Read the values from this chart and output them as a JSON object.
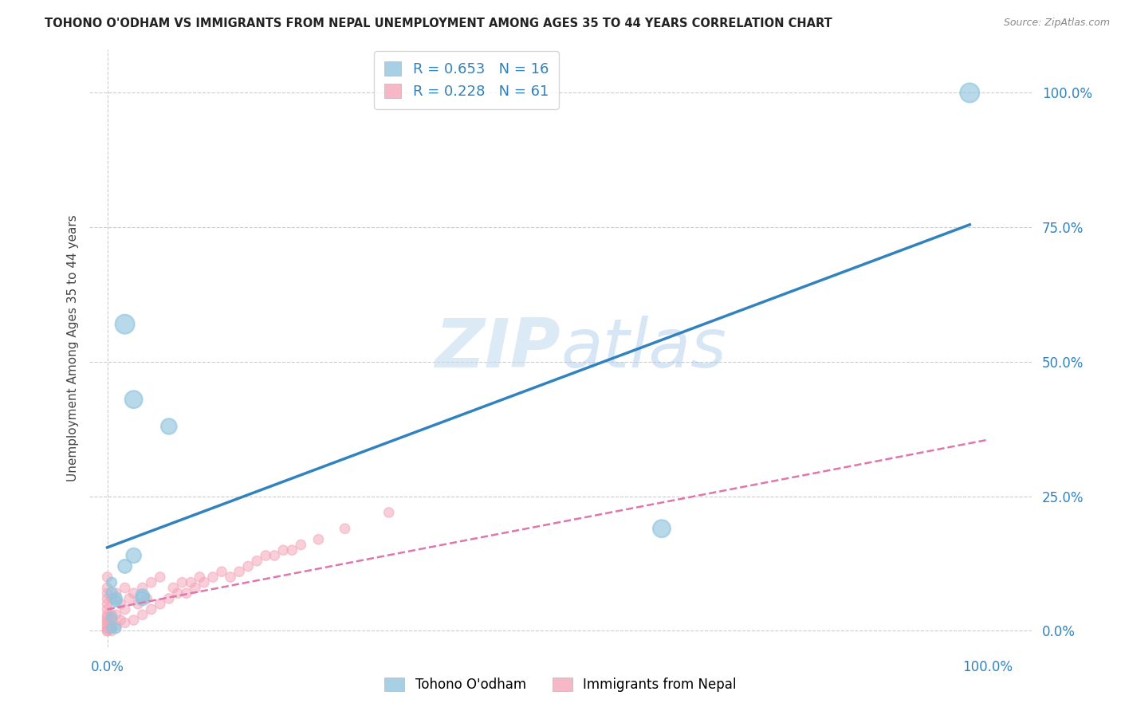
{
  "title": "TOHONO O'ODHAM VS IMMIGRANTS FROM NEPAL UNEMPLOYMENT AMONG AGES 35 TO 44 YEARS CORRELATION CHART",
  "source": "Source: ZipAtlas.com",
  "ylabel": "Unemployment Among Ages 35 to 44 years",
  "xlim": [
    -0.02,
    1.05
  ],
  "ylim": [
    -0.03,
    1.08
  ],
  "x_tick_positions": [
    0.0,
    1.0
  ],
  "x_tick_labels": [
    "0.0%",
    "100.0%"
  ],
  "y_tick_positions": [
    0.0,
    0.25,
    0.5,
    0.75,
    1.0
  ],
  "y_tick_labels_right": [
    "0.0%",
    "25.0%",
    "50.0%",
    "75.0%",
    "100.0%"
  ],
  "watermark_part1": "ZIP",
  "watermark_part2": "atlas",
  "blue_color": "#92c5de",
  "pink_color": "#f4a6b8",
  "blue_line_color": "#3182bd",
  "pink_line_color": "#de77ae",
  "legend_R_blue": "R = 0.653",
  "legend_N_blue": "N = 16",
  "legend_R_pink": "R = 0.228",
  "legend_N_pink": "N = 61",
  "blue_scatter_x": [
    0.02,
    0.03,
    0.07,
    0.03,
    0.01,
    0.02,
    0.005,
    0.01,
    0.04,
    0.01,
    0.005,
    0.63,
    0.98,
    0.005,
    0.005,
    0.04
  ],
  "blue_scatter_y": [
    0.57,
    0.43,
    0.38,
    0.14,
    0.06,
    0.12,
    0.07,
    0.055,
    0.06,
    0.005,
    0.005,
    0.19,
    1.0,
    0.09,
    0.025,
    0.065
  ],
  "blue_scatter_sizes": [
    300,
    250,
    200,
    180,
    120,
    150,
    100,
    100,
    150,
    80,
    80,
    250,
    300,
    80,
    80,
    150
  ],
  "pink_scatter_x": [
    0.0,
    0.0,
    0.0,
    0.0,
    0.0,
    0.0,
    0.0,
    0.0,
    0.0,
    0.0,
    0.0,
    0.0,
    0.0,
    0.0,
    0.005,
    0.005,
    0.005,
    0.005,
    0.005,
    0.01,
    0.01,
    0.01,
    0.015,
    0.015,
    0.02,
    0.02,
    0.02,
    0.025,
    0.03,
    0.03,
    0.035,
    0.04,
    0.04,
    0.045,
    0.05,
    0.05,
    0.06,
    0.06,
    0.07,
    0.075,
    0.08,
    0.085,
    0.09,
    0.095,
    0.1,
    0.105,
    0.11,
    0.12,
    0.13,
    0.14,
    0.15,
    0.16,
    0.17,
    0.18,
    0.19,
    0.2,
    0.21,
    0.22,
    0.24,
    0.27,
    0.32
  ],
  "pink_scatter_y": [
    0.0,
    0.0,
    0.005,
    0.01,
    0.015,
    0.02,
    0.025,
    0.03,
    0.04,
    0.05,
    0.06,
    0.07,
    0.08,
    0.1,
    0.0,
    0.01,
    0.02,
    0.03,
    0.06,
    0.01,
    0.03,
    0.07,
    0.02,
    0.05,
    0.015,
    0.04,
    0.08,
    0.06,
    0.02,
    0.07,
    0.05,
    0.03,
    0.08,
    0.06,
    0.04,
    0.09,
    0.05,
    0.1,
    0.06,
    0.08,
    0.07,
    0.09,
    0.07,
    0.09,
    0.08,
    0.1,
    0.09,
    0.1,
    0.11,
    0.1,
    0.11,
    0.12,
    0.13,
    0.14,
    0.14,
    0.15,
    0.15,
    0.16,
    0.17,
    0.19,
    0.22
  ],
  "pink_scatter_sizes": [
    80,
    80,
    80,
    80,
    80,
    80,
    80,
    80,
    80,
    80,
    80,
    80,
    80,
    80,
    80,
    80,
    80,
    80,
    80,
    80,
    80,
    80,
    80,
    80,
    80,
    80,
    80,
    80,
    80,
    80,
    80,
    80,
    80,
    80,
    80,
    80,
    80,
    80,
    80,
    80,
    80,
    80,
    80,
    80,
    80,
    80,
    80,
    80,
    80,
    80,
    80,
    80,
    80,
    80,
    80,
    80,
    80,
    80,
    80,
    80,
    80
  ],
  "blue_line_x0": 0.0,
  "blue_line_x1": 0.98,
  "blue_line_y0": 0.155,
  "blue_line_y1": 0.755,
  "pink_line_x0": 0.0,
  "pink_line_x1": 1.0,
  "pink_line_y0": 0.04,
  "pink_line_y1": 0.355,
  "background_color": "#ffffff",
  "grid_color": "#cccccc",
  "grid_style": "--",
  "grid_lw": 0.8
}
